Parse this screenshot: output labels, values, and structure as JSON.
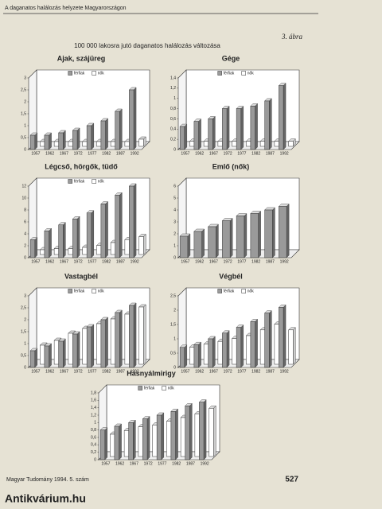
{
  "header": "A daganatos halálozás helyzete Magyarországon",
  "figure_label": "3. ábra",
  "page_title": "100 000 lakosra jutó daganatos halálozás változása",
  "footer": {
    "journal": "Magyar Tudomány 1994. 5. szám",
    "page": "527",
    "watermark": "Antikvárium.hu"
  },
  "chart_data": [
    {
      "type": "bar",
      "title": "Ajak, szájüreg",
      "categories": [
        "1957",
        "1962",
        "1967",
        "1972",
        "1977",
        "1982",
        "1987",
        "1992"
      ],
      "series": [
        {
          "name": "férfiak",
          "color": "#9a9a9a",
          "values": [
            0.6,
            0.6,
            0.7,
            0.8,
            1.0,
            1.2,
            1.6,
            2.5
          ]
        },
        {
          "name": "nők",
          "color": "#ffffff",
          "values": [
            0.2,
            0.2,
            0.2,
            0.2,
            0.2,
            0.2,
            0.2,
            0.3
          ]
        }
      ],
      "ylim": [
        0,
        3
      ],
      "yticks": [
        0,
        {
          "value": 0.5,
          "label": "0,5"
        },
        1,
        {
          "value": 1.5,
          "label": "1,5"
        },
        2,
        {
          "value": 2.5,
          "label": "2,5"
        },
        3
      ]
    },
    {
      "type": "bar",
      "title": "Gége",
      "categories": [
        "1957",
        "1962",
        "1967",
        "1972",
        "1977",
        "1982",
        "1987",
        "1992"
      ],
      "series": [
        {
          "name": "férfiak",
          "color": "#9a9a9a",
          "values": [
            0.45,
            0.55,
            0.6,
            0.8,
            0.8,
            0.85,
            0.95,
            1.25
          ]
        },
        {
          "name": "nők",
          "color": "#ffffff",
          "values": [
            0.1,
            0.1,
            0.1,
            0.1,
            0.1,
            0.1,
            0.1,
            0.1
          ]
        }
      ],
      "ylim": [
        0,
        1.4
      ],
      "yticks": [
        0,
        {
          "value": 0.2,
          "label": "0,2"
        },
        {
          "value": 0.4,
          "label": "0,4"
        },
        {
          "value": 0.6,
          "label": "0,6"
        },
        {
          "value": 0.8,
          "label": "0,8"
        },
        1,
        {
          "value": 1.2,
          "label": "1,2"
        },
        {
          "value": 1.4,
          "label": "1,4"
        }
      ]
    },
    {
      "type": "bar",
      "title": "Légcső, hörgők, tüdő",
      "categories": [
        "1957",
        "1962",
        "1967",
        "1972",
        "1977",
        "1982",
        "1987",
        "1992"
      ],
      "series": [
        {
          "name": "férfiak",
          "color": "#9a9a9a",
          "values": [
            3,
            4.5,
            5.5,
            6.5,
            7.5,
            9,
            10.5,
            12
          ]
        },
        {
          "name": "nők",
          "color": "#ffffff",
          "values": [
            0.8,
            1,
            1,
            1.2,
            1.5,
            2,
            2.5,
            3
          ]
        }
      ],
      "ylim": [
        0,
        12
      ],
      "yticks": [
        0,
        2,
        4,
        6,
        8,
        10,
        12
      ]
    },
    {
      "type": "bar",
      "title": "Emlő (nők)",
      "categories": [
        "1957",
        "1962",
        "1967",
        "1972",
        "1977",
        "1982",
        "1987",
        "1992"
      ],
      "series": [
        {
          "name": "nők",
          "color": "#9a9a9a",
          "values": [
            1.8,
            2.2,
            2.6,
            3.1,
            3.5,
            3.7,
            4.0,
            4.3
          ]
        }
      ],
      "ylim": [
        0,
        6
      ],
      "yticks": [
        0,
        1,
        2,
        3,
        4,
        5,
        6
      ]
    },
    {
      "type": "bar",
      "title": "Vastagbél",
      "categories": [
        "1957",
        "1962",
        "1967",
        "1972",
        "1977",
        "1982",
        "1987",
        "1992"
      ],
      "series": [
        {
          "name": "férfiak",
          "color": "#9a9a9a",
          "values": [
            0.7,
            0.9,
            1.1,
            1.4,
            1.7,
            2.0,
            2.3,
            2.6
          ]
        },
        {
          "name": "nők",
          "color": "#ffffff",
          "values": [
            0.8,
            1.0,
            1.3,
            1.5,
            1.7,
            1.9,
            2.1,
            2.4
          ]
        }
      ],
      "ylim": [
        0,
        3
      ],
      "yticks": [
        0,
        {
          "value": 0.5,
          "label": "0,5"
        },
        1,
        {
          "value": 1.5,
          "label": "1,5"
        },
        2,
        {
          "value": 2.5,
          "label": "2,5"
        },
        3
      ]
    },
    {
      "type": "bar",
      "title": "Végbél",
      "categories": [
        "1957",
        "1962",
        "1967",
        "1972",
        "1977",
        "1982",
        "1987",
        "1992"
      ],
      "series": [
        {
          "name": "férfiak",
          "color": "#9a9a9a",
          "values": [
            0.7,
            0.8,
            1.0,
            1.2,
            1.4,
            1.6,
            1.9,
            2.1
          ]
        },
        {
          "name": "nők",
          "color": "#ffffff",
          "values": [
            0.6,
            0.7,
            0.8,
            0.9,
            1.0,
            1.2,
            1.4,
            1.2
          ]
        }
      ],
      "ylim": [
        0,
        2.5
      ],
      "yticks": [
        0,
        {
          "value": 0.5,
          "label": "0,5"
        },
        1,
        {
          "value": 1.5,
          "label": "1,5"
        },
        2,
        {
          "value": 2.5,
          "label": "2,5"
        }
      ]
    },
    {
      "type": "bar",
      "title": "Hasnyálmirigy",
      "categories": [
        "1957",
        "1962",
        "1967",
        "1972",
        "1977",
        "1982",
        "1987",
        "1992"
      ],
      "series": [
        {
          "name": "férfiak",
          "color": "#9a9a9a",
          "values": [
            0.8,
            0.9,
            1.0,
            1.1,
            1.2,
            1.3,
            1.45,
            1.55
          ]
        },
        {
          "name": "nők",
          "color": "#ffffff",
          "values": [
            0.6,
            0.7,
            0.8,
            0.85,
            0.95,
            1.05,
            1.15,
            1.3
          ]
        }
      ],
      "ylim": [
        0,
        1.8
      ],
      "yticks": [
        0,
        {
          "value": 0.2,
          "label": "0,2"
        },
        {
          "value": 0.4,
          "label": "0,4"
        },
        {
          "value": 0.6,
          "label": "0,6"
        },
        {
          "value": 0.8,
          "label": "0,8"
        },
        1,
        {
          "value": 1.2,
          "label": "1,2"
        },
        {
          "value": 1.4,
          "label": "1,4"
        },
        {
          "value": 1.6,
          "label": "1,6"
        },
        {
          "value": 1.8,
          "label": "1,8"
        }
      ]
    }
  ]
}
